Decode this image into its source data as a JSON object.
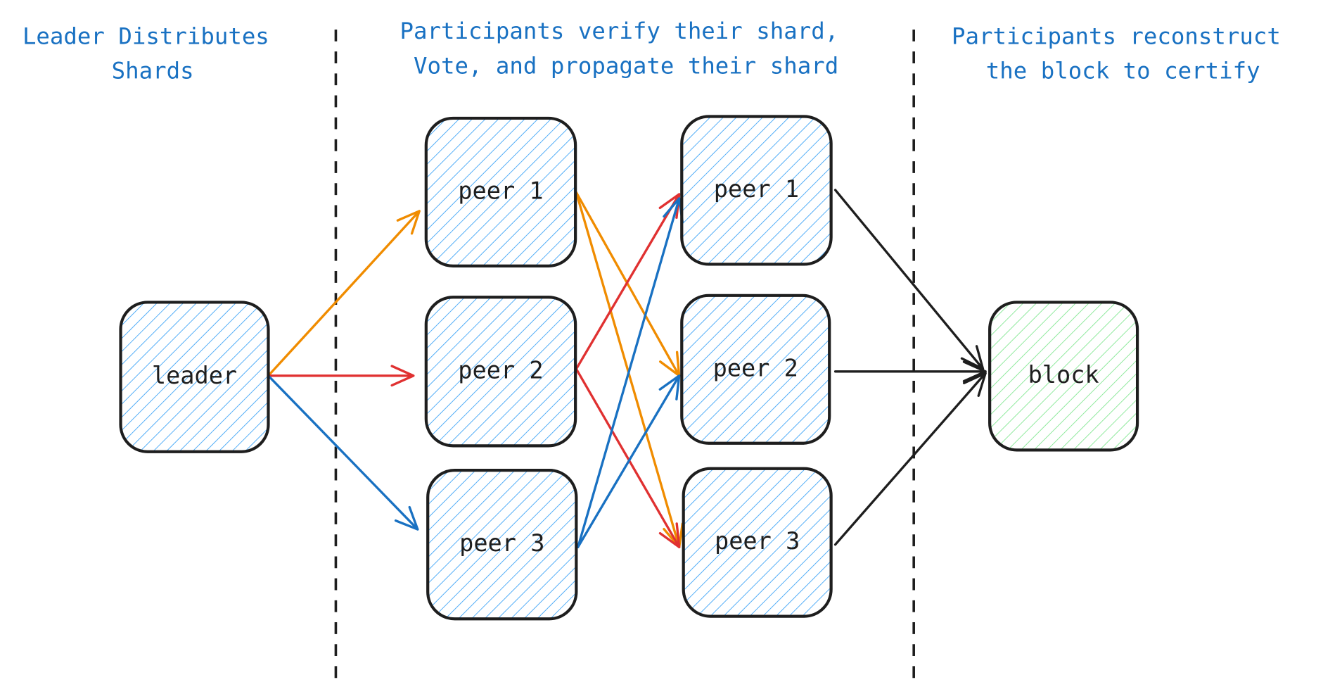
{
  "sections": [
    {
      "lines": [
        "Leader Distributes",
        "Shards"
      ]
    },
    {
      "lines": [
        "Participants verify their shard,",
        "Vote, and propagate their shard"
      ]
    },
    {
      "lines": [
        "Participants reconstruct",
        "the block to certify"
      ]
    }
  ],
  "nodes": {
    "leader": {
      "label": "leader",
      "fill": "#4dabf7"
    },
    "peer1a": {
      "label": "peer 1",
      "fill": "#4dabf7"
    },
    "peer2a": {
      "label": "peer 2",
      "fill": "#4dabf7"
    },
    "peer3a": {
      "label": "peer 3",
      "fill": "#4dabf7"
    },
    "peer1b": {
      "label": "peer 1",
      "fill": "#4dabf7"
    },
    "peer2b": {
      "label": "peer 2",
      "fill": "#4dabf7"
    },
    "peer3b": {
      "label": "peer 3",
      "fill": "#4dabf7"
    },
    "block": {
      "label": "block",
      "fill": "#8ce99a"
    }
  },
  "edges": [
    {
      "from": "leader",
      "to": "peer1a",
      "color": "#f08c00"
    },
    {
      "from": "leader",
      "to": "peer2a",
      "color": "#e03131"
    },
    {
      "from": "leader",
      "to": "peer3a",
      "color": "#1971c2"
    },
    {
      "from": "peer1a",
      "to": "peer2b",
      "color": "#f08c00"
    },
    {
      "from": "peer1a",
      "to": "peer3b",
      "color": "#f08c00"
    },
    {
      "from": "peer2a",
      "to": "peer1b",
      "color": "#e03131"
    },
    {
      "from": "peer2a",
      "to": "peer3b",
      "color": "#e03131"
    },
    {
      "from": "peer3a",
      "to": "peer1b",
      "color": "#1971c2"
    },
    {
      "from": "peer3a",
      "to": "peer2b",
      "color": "#1971c2"
    },
    {
      "from": "peer1b",
      "to": "block",
      "color": "#1e1e1e"
    },
    {
      "from": "peer2b",
      "to": "block",
      "color": "#1e1e1e"
    },
    {
      "from": "peer3b",
      "to": "block",
      "color": "#1e1e1e"
    }
  ],
  "colors": {
    "title": "#1971c2",
    "stroke": "#1e1e1e"
  }
}
